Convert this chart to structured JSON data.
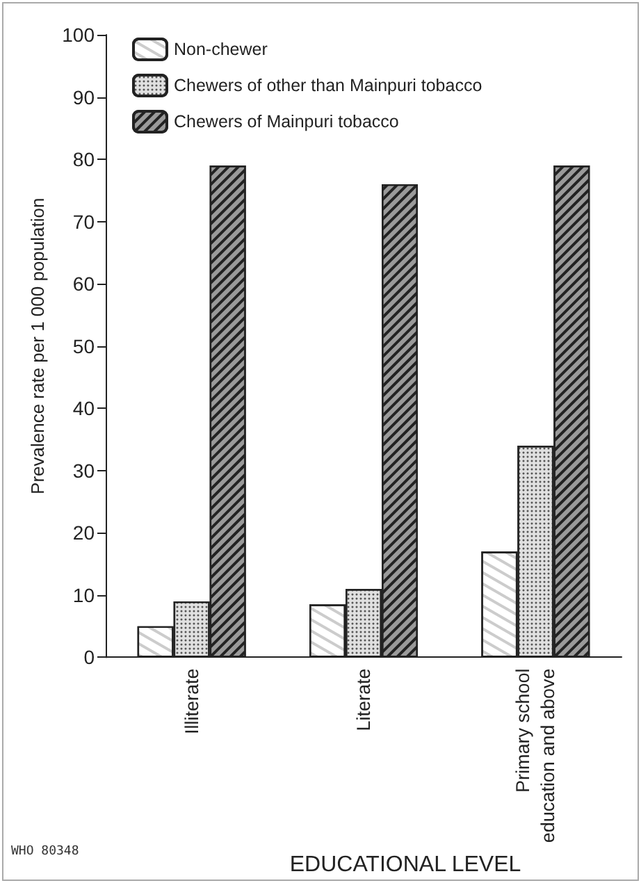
{
  "chart_data": {
    "type": "bar",
    "xlabel": "EDUCATIONAL LEVEL",
    "ylabel": "Prevalence rate per 1 000 population",
    "categories": [
      "Illiterate",
      "Literate",
      "Primary school\neducation and above"
    ],
    "series": [
      {
        "name": "Non-chewer",
        "color": "#ffffff",
        "values": [
          5,
          8.5,
          17
        ]
      },
      {
        "name": "Chewers of other than Mainpuri tobacco",
        "color": "#e0e0e0",
        "values": [
          9,
          11,
          34
        ]
      },
      {
        "name": "Chewers of Mainpuri tobacco",
        "color": "#9a9a9a",
        "values": [
          79,
          76,
          79
        ]
      }
    ],
    "ylim": [
      0,
      100
    ],
    "yticks": [
      0,
      10,
      20,
      30,
      40,
      50,
      60,
      70,
      80,
      90,
      100
    ],
    "grid": false,
    "legend": "top left",
    "annotations": [
      "WHO 80348"
    ]
  }
}
